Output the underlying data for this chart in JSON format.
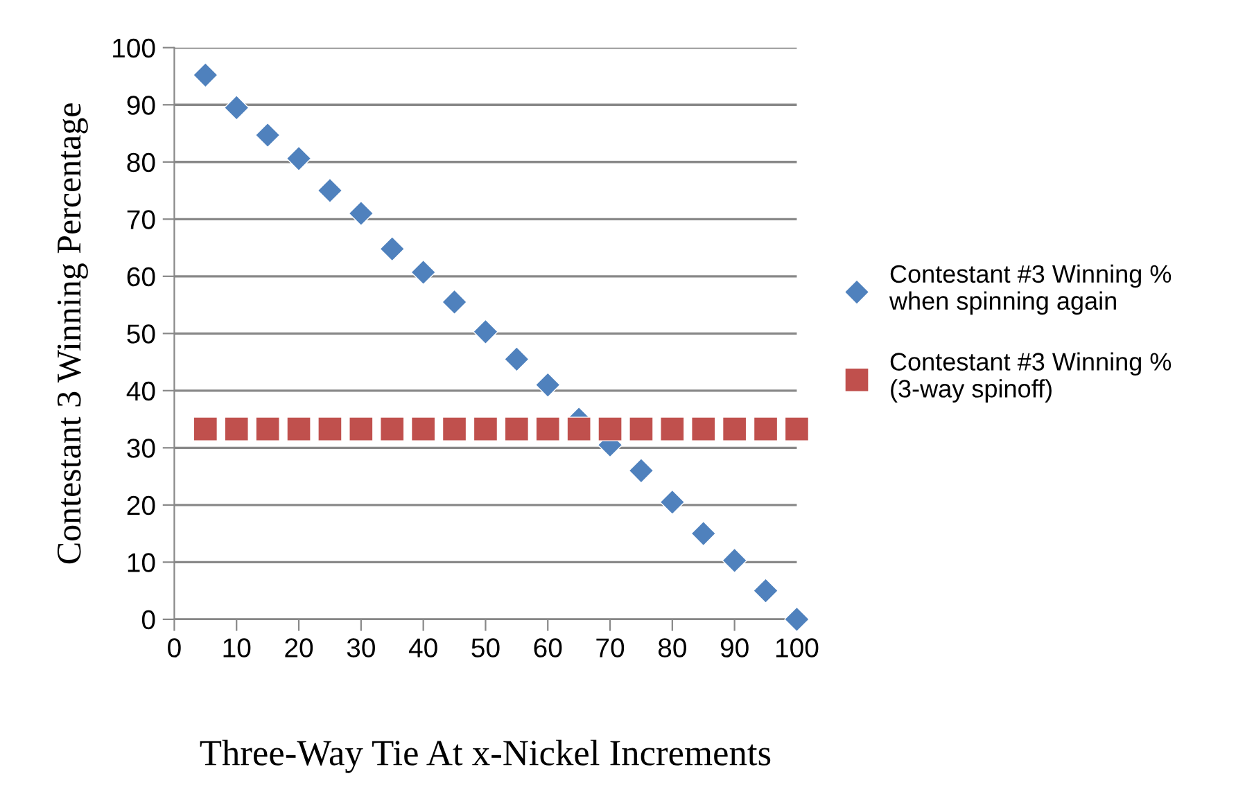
{
  "chart_data": {
    "type": "scatter",
    "xlabel": "Three-Way Tie At x-Nickel Increments",
    "ylabel": "Contestant 3 Winning Percentage",
    "xlim": [
      0,
      100
    ],
    "ylim": [
      0,
      100
    ],
    "xticks": [
      0,
      10,
      20,
      30,
      40,
      50,
      60,
      70,
      80,
      90,
      100
    ],
    "yticks": [
      0,
      10,
      20,
      30,
      40,
      50,
      60,
      70,
      80,
      90,
      100
    ],
    "grid": "y",
    "legend": "right",
    "x": [
      5,
      10,
      15,
      20,
      25,
      30,
      35,
      40,
      45,
      50,
      55,
      60,
      65,
      70,
      75,
      80,
      85,
      90,
      95,
      100
    ],
    "series": [
      {
        "name": "Contestant #3 Winning % when spinning again",
        "color": "#4f81bd",
        "marker": "diamond",
        "values": [
          95.2,
          89.5,
          84.7,
          80.6,
          75,
          71,
          64.8,
          60.7,
          55.5,
          50.3,
          45.5,
          41,
          35,
          30.5,
          26,
          20.5,
          15,
          10.3,
          5,
          0
        ]
      },
      {
        "name": "Contestant #3 Winning % (3-way spinoff)",
        "color": "#c0504d",
        "marker": "square",
        "values": [
          33.3,
          33.3,
          33.3,
          33.3,
          33.3,
          33.3,
          33.3,
          33.3,
          33.3,
          33.3,
          33.3,
          33.3,
          33.3,
          33.3,
          33.3,
          33.3,
          33.3,
          33.3,
          33.3,
          33.3
        ]
      }
    ]
  }
}
